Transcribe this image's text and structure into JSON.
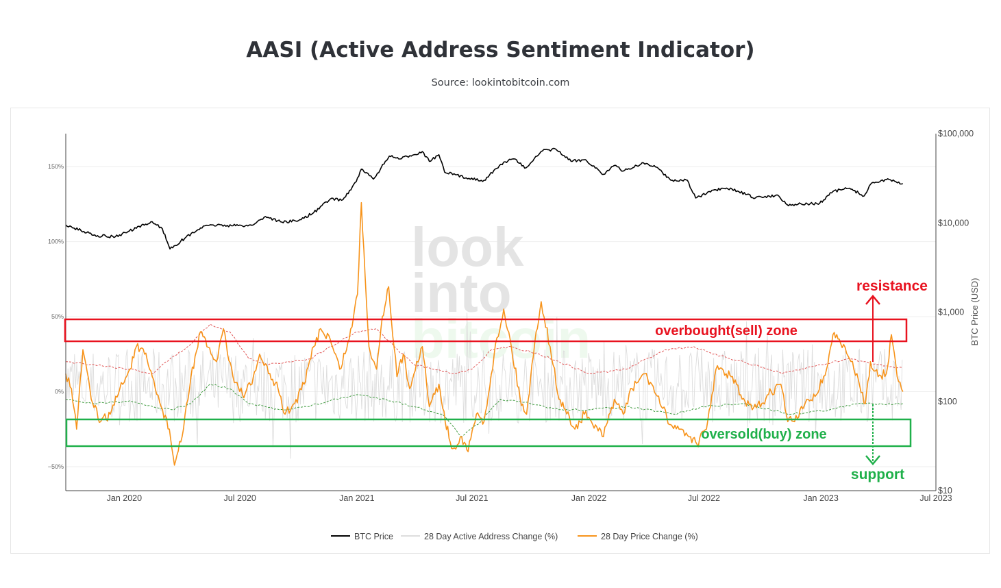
{
  "title": "AASI (Active Address Sentiment Indicator)",
  "subtitle": "Source: lookintobitcoin.com",
  "watermark": [
    "look",
    "into",
    "bitcoin"
  ],
  "chart_data": {
    "type": "line",
    "x_range": [
      "2019-10-01",
      "2023-07-01"
    ],
    "x_ticks": [
      {
        "label": "Jan 2020",
        "date": "2020-01-01"
      },
      {
        "label": "Jul 2020",
        "date": "2020-07-01"
      },
      {
        "label": "Jan 2021",
        "date": "2021-01-01"
      },
      {
        "label": "Jul 2021",
        "date": "2021-07-01"
      },
      {
        "label": "Jan 2022",
        "date": "2022-01-01"
      },
      {
        "label": "Jul 2022",
        "date": "2022-07-01"
      },
      {
        "label": "Jan 2023",
        "date": "2023-01-01"
      },
      {
        "label": "Jul 2023",
        "date": "2023-07-01"
      }
    ],
    "y_left": {
      "range": [
        -0.66,
        1.72
      ],
      "ticks": [
        {
          "label": "150%",
          "v": 1.5
        },
        {
          "label": "100%",
          "v": 1.0
        },
        {
          "label": "50%",
          "v": 0.5
        },
        {
          "label": "0%",
          "v": 0
        },
        {
          "label": "−50%",
          "v": -0.5
        }
      ]
    },
    "y_right": {
      "label": "BTC Price (USD)",
      "scale": "log",
      "range": [
        10,
        100000
      ],
      "ticks": [
        {
          "label": "$100,000",
          "v": 100000
        },
        {
          "label": "$10,000",
          "v": 10000
        },
        {
          "label": "$1,000",
          "v": 1000
        },
        {
          "label": "$100",
          "v": 100
        },
        {
          "label": "$10",
          "v": 10
        }
      ]
    },
    "series": [
      {
        "name": "BTC Price",
        "color": "#000000",
        "axis": "right",
        "points": [
          [
            "2019-10-01",
            9500
          ],
          [
            "2019-10-25",
            8200
          ],
          [
            "2019-11-20",
            7200
          ],
          [
            "2019-12-18",
            7000
          ],
          [
            "2020-01-20",
            8700
          ],
          [
            "2020-02-14",
            10300
          ],
          [
            "2020-03-01",
            8600
          ],
          [
            "2020-03-13",
            5100
          ],
          [
            "2020-04-05",
            6700
          ],
          [
            "2020-04-30",
            8800
          ],
          [
            "2020-05-20",
            9500
          ],
          [
            "2020-06-20",
            9300
          ],
          [
            "2020-07-20",
            9400
          ],
          [
            "2020-08-10",
            11800
          ],
          [
            "2020-09-05",
            10200
          ],
          [
            "2020-10-01",
            10600
          ],
          [
            "2020-10-25",
            13000
          ],
          [
            "2020-11-20",
            18500
          ],
          [
            "2020-12-10",
            18200
          ],
          [
            "2020-12-31",
            29000
          ],
          [
            "2021-01-08",
            40000
          ],
          [
            "2021-01-27",
            31000
          ],
          [
            "2021-02-21",
            56000
          ],
          [
            "2021-03-10",
            52000
          ],
          [
            "2021-04-14",
            63000
          ],
          [
            "2021-04-25",
            49000
          ],
          [
            "2021-05-10",
            58000
          ],
          [
            "2021-05-19",
            37000
          ],
          [
            "2021-06-22",
            32000
          ],
          [
            "2021-07-20",
            30000
          ],
          [
            "2021-08-20",
            48000
          ],
          [
            "2021-09-07",
            52000
          ],
          [
            "2021-09-22",
            41000
          ],
          [
            "2021-10-20",
            64000
          ],
          [
            "2021-11-10",
            67000
          ],
          [
            "2021-12-04",
            49000
          ],
          [
            "2021-12-27",
            51000
          ],
          [
            "2022-01-24",
            35000
          ],
          [
            "2022-02-10",
            44000
          ],
          [
            "2022-02-24",
            38000
          ],
          [
            "2022-03-28",
            47000
          ],
          [
            "2022-04-20",
            41000
          ],
          [
            "2022-05-10",
            30000
          ],
          [
            "2022-06-05",
            30000
          ],
          [
            "2022-06-18",
            19000
          ],
          [
            "2022-07-20",
            23500
          ],
          [
            "2022-08-14",
            24000
          ],
          [
            "2022-09-20",
            19000
          ],
          [
            "2022-10-25",
            20500
          ],
          [
            "2022-11-09",
            16000
          ],
          [
            "2022-12-30",
            16500
          ],
          [
            "2023-01-20",
            22500
          ],
          [
            "2023-02-15",
            24500
          ],
          [
            "2023-03-10",
            20000
          ],
          [
            "2023-03-22",
            28000
          ],
          [
            "2023-04-14",
            30500
          ],
          [
            "2023-05-10",
            27500
          ]
        ]
      },
      {
        "name": "28 Day Active Address Change (%)",
        "color": "#dddddd",
        "axis": "left"
      },
      {
        "name": "28 Day Price Change (%)",
        "color": "#f7931a",
        "axis": "left",
        "points": [
          [
            "2019-10-01",
            0.12
          ],
          [
            "2019-10-10",
            0.02
          ],
          [
            "2019-10-18",
            -0.25
          ],
          [
            "2019-10-28",
            0.28
          ],
          [
            "2019-11-10",
            -0.05
          ],
          [
            "2019-11-25",
            -0.2
          ],
          [
            "2019-12-10",
            -0.15
          ],
          [
            "2019-12-25",
            0.02
          ],
          [
            "2020-01-10",
            0.15
          ],
          [
            "2020-01-20",
            0.3
          ],
          [
            "2020-02-02",
            0.25
          ],
          [
            "2020-02-14",
            0.1
          ],
          [
            "2020-02-28",
            -0.1
          ],
          [
            "2020-03-12",
            -0.25
          ],
          [
            "2020-03-20",
            -0.49
          ],
          [
            "2020-04-01",
            -0.3
          ],
          [
            "2020-04-15",
            0.1
          ],
          [
            "2020-04-30",
            0.4
          ],
          [
            "2020-05-10",
            0.3
          ],
          [
            "2020-05-25",
            0.2
          ],
          [
            "2020-06-05",
            0.42
          ],
          [
            "2020-06-20",
            0.1
          ],
          [
            "2020-07-05",
            -0.02
          ],
          [
            "2020-07-20",
            0.05
          ],
          [
            "2020-08-01",
            0.25
          ],
          [
            "2020-08-15",
            0.12
          ],
          [
            "2020-08-30",
            0.02
          ],
          [
            "2020-09-10",
            -0.15
          ],
          [
            "2020-09-25",
            -0.08
          ],
          [
            "2020-10-10",
            0.05
          ],
          [
            "2020-10-25",
            0.3
          ],
          [
            "2020-11-05",
            0.42
          ],
          [
            "2020-11-20",
            0.35
          ],
          [
            "2020-12-05",
            0.15
          ],
          [
            "2020-12-20",
            0.35
          ],
          [
            "2021-01-02",
            0.65
          ],
          [
            "2021-01-08",
            1.26
          ],
          [
            "2021-01-20",
            0.3
          ],
          [
            "2021-02-01",
            0.15
          ],
          [
            "2021-02-10",
            0.5
          ],
          [
            "2021-02-20",
            0.7
          ],
          [
            "2021-03-05",
            0.1
          ],
          [
            "2021-03-15",
            0.25
          ],
          [
            "2021-03-25",
            0.02
          ],
          [
            "2021-04-05",
            0.2
          ],
          [
            "2021-04-14",
            0.3
          ],
          [
            "2021-04-25",
            -0.1
          ],
          [
            "2021-05-10",
            0.05
          ],
          [
            "2021-05-20",
            -0.2
          ],
          [
            "2021-06-01",
            -0.38
          ],
          [
            "2021-06-15",
            -0.3
          ],
          [
            "2021-06-25",
            -0.4
          ],
          [
            "2021-07-08",
            -0.15
          ],
          [
            "2021-07-20",
            -0.2
          ],
          [
            "2021-08-05",
            0.25
          ],
          [
            "2021-08-20",
            0.55
          ],
          [
            "2021-09-01",
            0.3
          ],
          [
            "2021-09-15",
            -0.05
          ],
          [
            "2021-09-25",
            -0.15
          ],
          [
            "2021-10-10",
            0.4
          ],
          [
            "2021-10-18",
            0.6
          ],
          [
            "2021-11-01",
            0.3
          ],
          [
            "2021-11-15",
            -0.05
          ],
          [
            "2021-11-25",
            -0.12
          ],
          [
            "2021-12-10",
            -0.25
          ],
          [
            "2021-12-25",
            -0.15
          ],
          [
            "2022-01-05",
            -0.2
          ],
          [
            "2022-01-24",
            -0.3
          ],
          [
            "2022-02-10",
            -0.05
          ],
          [
            "2022-02-24",
            -0.15
          ],
          [
            "2022-03-10",
            0.02
          ],
          [
            "2022-03-28",
            0.12
          ],
          [
            "2022-04-10",
            0.05
          ],
          [
            "2022-04-25",
            -0.1
          ],
          [
            "2022-05-10",
            -0.22
          ],
          [
            "2022-05-25",
            -0.25
          ],
          [
            "2022-06-10",
            -0.3
          ],
          [
            "2022-06-20",
            -0.35
          ],
          [
            "2022-07-05",
            -0.25
          ],
          [
            "2022-07-20",
            0.15
          ],
          [
            "2022-08-05",
            0.12
          ],
          [
            "2022-08-15",
            0.1
          ],
          [
            "2022-08-30",
            -0.05
          ],
          [
            "2022-09-15",
            -0.12
          ],
          [
            "2022-09-30",
            -0.08
          ],
          [
            "2022-10-15",
            0.0
          ],
          [
            "2022-10-30",
            0.05
          ],
          [
            "2022-11-10",
            -0.2
          ],
          [
            "2022-11-25",
            -0.18
          ],
          [
            "2022-12-10",
            -0.05
          ],
          [
            "2022-12-25",
            -0.02
          ],
          [
            "2023-01-10",
            0.15
          ],
          [
            "2023-01-20",
            0.38
          ],
          [
            "2023-01-30",
            0.35
          ],
          [
            "2023-02-15",
            0.22
          ],
          [
            "2023-03-01",
            0.08
          ],
          [
            "2023-03-12",
            -0.08
          ],
          [
            "2023-03-20",
            0.2
          ],
          [
            "2023-04-01",
            0.1
          ],
          [
            "2023-04-14",
            0.12
          ],
          [
            "2023-04-22",
            0.38
          ],
          [
            "2023-05-01",
            0.1
          ],
          [
            "2023-05-10",
            0.0
          ]
        ]
      },
      {
        "name": "",
        "color": "#e05555",
        "axis": "left",
        "style": "dotted",
        "points": [
          [
            "2019-10-01",
            0.2
          ],
          [
            "2019-11-15",
            0.18
          ],
          [
            "2020-01-10",
            0.15
          ],
          [
            "2020-02-15",
            0.12
          ],
          [
            "2020-03-01",
            0.18
          ],
          [
            "2020-04-10",
            0.3
          ],
          [
            "2020-05-15",
            0.45
          ],
          [
            "2020-06-15",
            0.4
          ],
          [
            "2020-07-15",
            0.22
          ],
          [
            "2020-08-15",
            0.18
          ],
          [
            "2020-09-15",
            0.2
          ],
          [
            "2020-10-20",
            0.22
          ],
          [
            "2020-11-20",
            0.3
          ],
          [
            "2021-01-01",
            0.4
          ],
          [
            "2021-02-01",
            0.42
          ],
          [
            "2021-03-01",
            0.3
          ],
          [
            "2021-04-01",
            0.18
          ],
          [
            "2021-05-01",
            0.15
          ],
          [
            "2021-06-01",
            0.12
          ],
          [
            "2021-07-01",
            0.15
          ],
          [
            "2021-08-01",
            0.28
          ],
          [
            "2021-09-01",
            0.3
          ],
          [
            "2021-10-15",
            0.25
          ],
          [
            "2021-11-15",
            0.2
          ],
          [
            "2022-01-01",
            0.12
          ],
          [
            "2022-03-01",
            0.15
          ],
          [
            "2022-05-01",
            0.28
          ],
          [
            "2022-06-15",
            0.3
          ],
          [
            "2022-07-15",
            0.25
          ],
          [
            "2022-09-01",
            0.2
          ],
          [
            "2022-11-01",
            0.12
          ],
          [
            "2023-01-01",
            0.18
          ],
          [
            "2023-02-15",
            0.22
          ],
          [
            "2023-04-01",
            0.18
          ],
          [
            "2023-05-10",
            0.16
          ]
        ]
      },
      {
        "name": "",
        "color": "#3e9a3e",
        "axis": "left",
        "style": "dotted",
        "points": [
          [
            "2019-10-01",
            -0.05
          ],
          [
            "2019-11-15",
            -0.08
          ],
          [
            "2020-01-10",
            -0.06
          ],
          [
            "2020-02-15",
            -0.1
          ],
          [
            "2020-03-15",
            -0.12
          ],
          [
            "2020-04-15",
            -0.08
          ],
          [
            "2020-05-15",
            0.05
          ],
          [
            "2020-06-15",
            0.02
          ],
          [
            "2020-07-15",
            -0.08
          ],
          [
            "2020-09-01",
            -0.12
          ],
          [
            "2020-10-15",
            -0.1
          ],
          [
            "2020-11-20",
            -0.06
          ],
          [
            "2021-01-01",
            -0.02
          ],
          [
            "2021-02-15",
            -0.05
          ],
          [
            "2021-04-01",
            -0.1
          ],
          [
            "2021-05-15",
            -0.15
          ],
          [
            "2021-06-15",
            -0.3
          ],
          [
            "2021-07-15",
            -0.2
          ],
          [
            "2021-08-15",
            -0.05
          ],
          [
            "2021-10-01",
            -0.08
          ],
          [
            "2021-11-15",
            -0.12
          ],
          [
            "2022-01-01",
            -0.12
          ],
          [
            "2022-03-01",
            -0.1
          ],
          [
            "2022-05-15",
            -0.15
          ],
          [
            "2022-07-01",
            -0.1
          ],
          [
            "2022-09-01",
            -0.08
          ],
          [
            "2022-11-15",
            -0.15
          ],
          [
            "2023-01-15",
            -0.12
          ],
          [
            "2023-03-01",
            -0.08
          ],
          [
            "2023-05-10",
            -0.08
          ]
        ]
      }
    ],
    "legend_position": "bottom-center",
    "annotations": {
      "overbought_label": "overbought(sell) zone",
      "oversold_label": "oversold(buy) zone",
      "resistance_label": "resistance",
      "support_label": "support"
    },
    "colors": {
      "sell": "#e8121f",
      "buy": "#1fb04a",
      "btc": "#000000",
      "price_change": "#f7931a",
      "address_change": "#dddddd"
    }
  }
}
